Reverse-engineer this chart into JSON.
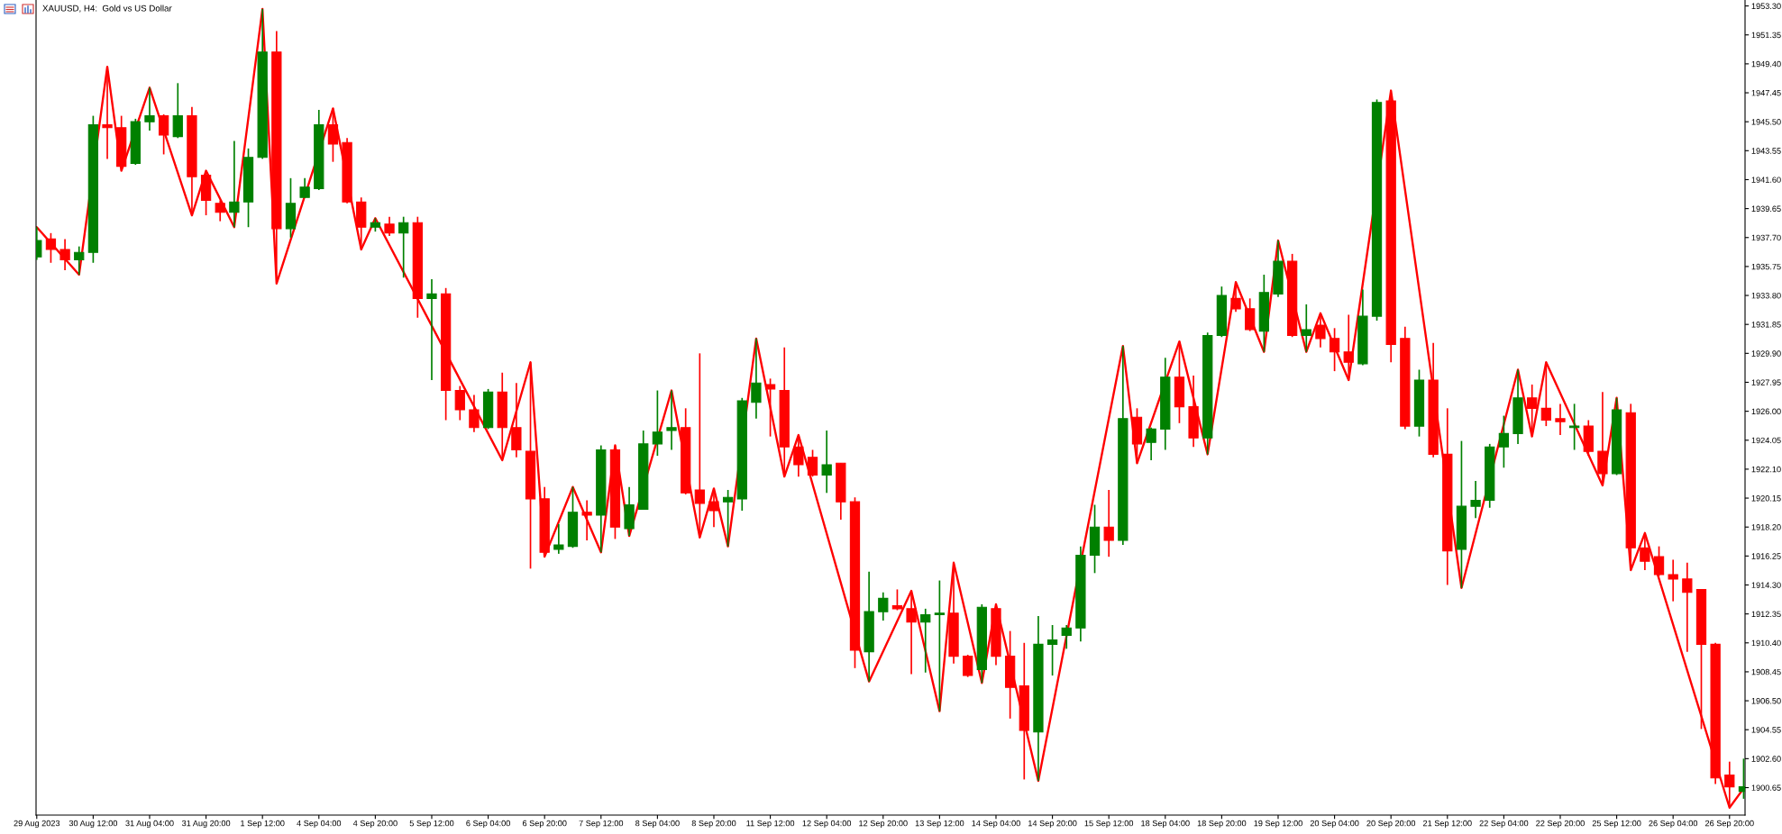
{
  "chart_data": {
    "type": "candlestick",
    "title": "XAUUSD, H4:  Gold vs US Dollar",
    "categories": [
      "29 Aug 2023",
      null,
      null,
      null,
      "30 Aug 12:00",
      null,
      null,
      null,
      "31 Aug 04:00",
      null,
      null,
      null,
      "31 Aug 20:00",
      null,
      null,
      null,
      "1 Sep 12:00",
      null,
      null,
      null,
      "4 Sep 04:00",
      null,
      null,
      null,
      "4 Sep 20:00",
      null,
      null,
      null,
      "5 Sep 12:00",
      null,
      null,
      null,
      "6 Sep 04:00",
      null,
      null,
      null,
      "6 Sep 20:00",
      null,
      null,
      null,
      "7 Sep 12:00",
      null,
      null,
      null,
      "8 Sep 04:00",
      null,
      null,
      null,
      "8 Sep 20:00",
      null,
      null,
      null,
      "11 Sep 12:00",
      null,
      null,
      null,
      "12 Sep 04:00",
      null,
      null,
      null,
      "12 Sep 20:00",
      null,
      null,
      null,
      "13 Sep 12:00",
      null,
      null,
      null,
      "14 Sep 04:00",
      null,
      null,
      null,
      "14 Sep 20:00",
      null,
      null,
      null,
      "15 Sep 12:00",
      null,
      null,
      null,
      "18 Sep 04:00",
      null,
      null,
      null,
      "18 Sep 20:00",
      null,
      null,
      null,
      "19 Sep 12:00",
      null,
      null,
      null,
      "20 Sep 04:00",
      null,
      null,
      null,
      "20 Sep 20:00",
      null,
      null,
      null,
      "21 Sep 12:00",
      null,
      null,
      null,
      "22 Sep 04:00",
      null,
      null,
      null,
      "22 Sep 20:00",
      null,
      null,
      null,
      "25 Sep 12:00",
      null,
      null,
      null,
      "26 Sep 04:00",
      null,
      null,
      null,
      "26 Sep 20:00",
      null
    ],
    "ohlc": [
      [
        1936.4,
        1938.4,
        1936.2,
        1937.5
      ],
      [
        1937.6,
        1938.0,
        1936.0,
        1936.9
      ],
      [
        1936.9,
        1937.6,
        1935.5,
        1936.2
      ],
      [
        1936.2,
        1937.1,
        1935.2,
        1936.7
      ],
      [
        1936.7,
        1945.9,
        1936.0,
        1945.3
      ],
      [
        1945.3,
        1949.2,
        1943.0,
        1945.1
      ],
      [
        1945.1,
        1945.9,
        1942.2,
        1942.5
      ],
      [
        1942.7,
        1945.7,
        1942.6,
        1945.5
      ],
      [
        1945.5,
        1947.8,
        1944.9,
        1945.9
      ],
      [
        1945.9,
        1946.0,
        1943.3,
        1944.6
      ],
      [
        1944.5,
        1948.1,
        1944.4,
        1945.9
      ],
      [
        1945.9,
        1946.5,
        1939.2,
        1941.8
      ],
      [
        1941.9,
        1942.2,
        1939.2,
        1940.2
      ],
      [
        1940.0,
        1940.2,
        1938.8,
        1939.4
      ],
      [
        1939.4,
        1944.2,
        1938.4,
        1940.1
      ],
      [
        1940.1,
        1943.7,
        1938.4,
        1943.1
      ],
      [
        1943.1,
        1953.1,
        1943.0,
        1950.2
      ],
      [
        1950.2,
        1951.6,
        1934.6,
        1938.3
      ],
      [
        1938.3,
        1941.7,
        1937.7,
        1940.0
      ],
      [
        1940.4,
        1941.7,
        1940.4,
        1941.1
      ],
      [
        1941.0,
        1946.3,
        1940.9,
        1945.3
      ],
      [
        1945.3,
        1946.4,
        1942.8,
        1944.0
      ],
      [
        1944.1,
        1944.4,
        1940.0,
        1940.1
      ],
      [
        1940.1,
        1940.4,
        1936.9,
        1938.4
      ],
      [
        1938.4,
        1939.0,
        1938.1,
        1938.7
      ],
      [
        1938.6,
        1939.1,
        1937.8,
        1938.0
      ],
      [
        1938.0,
        1939.1,
        1935.0,
        1938.7
      ],
      [
        1938.7,
        1939.1,
        1932.3,
        1933.6
      ],
      [
        1933.6,
        1934.9,
        1928.1,
        1933.9
      ],
      [
        1933.9,
        1934.3,
        1925.4,
        1927.4
      ],
      [
        1927.4,
        1927.7,
        1925.4,
        1926.1
      ],
      [
        1926.1,
        1927.1,
        1924.6,
        1924.9
      ],
      [
        1924.9,
        1927.5,
        1924.8,
        1927.3
      ],
      [
        1927.3,
        1928.6,
        1922.7,
        1924.9
      ],
      [
        1924.9,
        1927.9,
        1922.9,
        1923.4
      ],
      [
        1923.3,
        1929.3,
        1915.4,
        1920.1
      ],
      [
        1920.1,
        1920.9,
        1916.2,
        1916.5
      ],
      [
        1916.7,
        1918.4,
        1916.4,
        1917.0
      ],
      [
        1916.9,
        1920.9,
        1916.8,
        1919.2
      ],
      [
        1919.2,
        1920.0,
        1917.3,
        1919.0
      ],
      [
        1919.0,
        1923.7,
        1916.5,
        1923.4
      ],
      [
        1923.4,
        1923.7,
        1917.4,
        1918.2
      ],
      [
        1918.1,
        1920.9,
        1917.6,
        1919.7
      ],
      [
        1919.4,
        1924.7,
        1919.4,
        1923.8
      ],
      [
        1923.8,
        1927.4,
        1923.0,
        1924.6
      ],
      [
        1924.7,
        1927.4,
        1923.4,
        1924.9
      ],
      [
        1924.9,
        1926.2,
        1920.4,
        1920.5
      ],
      [
        1920.7,
        1929.9,
        1917.5,
        1919.8
      ],
      [
        1919.9,
        1920.8,
        1918.2,
        1919.3
      ],
      [
        1919.9,
        1920.7,
        1916.9,
        1920.2
      ],
      [
        1920.1,
        1926.9,
        1919.3,
        1926.7
      ],
      [
        1926.6,
        1930.9,
        1925.5,
        1927.9
      ],
      [
        1927.8,
        1928.2,
        1924.3,
        1927.5
      ],
      [
        1927.4,
        1930.3,
        1921.6,
        1923.6
      ],
      [
        1923.6,
        1924.4,
        1921.6,
        1922.4
      ],
      [
        1922.9,
        1923.4,
        1921.6,
        1921.7
      ],
      [
        1921.7,
        1924.7,
        1920.5,
        1922.4
      ],
      [
        1922.5,
        1922.5,
        1918.7,
        1919.9
      ],
      [
        1919.9,
        1920.2,
        1908.7,
        1909.9
      ],
      [
        1909.8,
        1915.2,
        1907.8,
        1912.5
      ],
      [
        1912.5,
        1913.8,
        1911.9,
        1913.4
      ],
      [
        1912.9,
        1914.0,
        1912.6,
        1912.7
      ],
      [
        1912.7,
        1913.9,
        1908.3,
        1911.8
      ],
      [
        1911.8,
        1912.7,
        1908.4,
        1912.3
      ],
      [
        1912.3,
        1914.6,
        1905.8,
        1912.4
      ],
      [
        1912.4,
        1915.8,
        1909.0,
        1909.5
      ],
      [
        1909.5,
        1909.6,
        1908.1,
        1908.2
      ],
      [
        1908.6,
        1913.0,
        1907.7,
        1912.8
      ],
      [
        1912.7,
        1913.0,
        1908.9,
        1909.5
      ],
      [
        1909.5,
        1911.2,
        1905.3,
        1907.4
      ],
      [
        1907.5,
        1910.4,
        1901.2,
        1904.5
      ],
      [
        1904.4,
        1912.2,
        1901.1,
        1910.3
      ],
      [
        1910.3,
        1911.6,
        1908.2,
        1910.6
      ],
      [
        1910.9,
        1911.6,
        1910.0,
        1911.4
      ],
      [
        1911.4,
        1916.9,
        1910.5,
        1916.3
      ],
      [
        1916.3,
        1919.7,
        1915.1,
        1918.2
      ],
      [
        1918.2,
        1920.7,
        1916.2,
        1917.3
      ],
      [
        1917.3,
        1930.4,
        1917.0,
        1925.5
      ],
      [
        1925.6,
        1926.2,
        1922.5,
        1923.8
      ],
      [
        1923.9,
        1924.9,
        1922.7,
        1924.8
      ],
      [
        1924.8,
        1929.6,
        1923.4,
        1928.3
      ],
      [
        1928.3,
        1930.7,
        1925.2,
        1926.3
      ],
      [
        1926.3,
        1928.4,
        1923.6,
        1924.2
      ],
      [
        1924.2,
        1931.3,
        1923.1,
        1931.1
      ],
      [
        1931.1,
        1934.4,
        1931.0,
        1933.8
      ],
      [
        1933.6,
        1934.7,
        1932.7,
        1932.9
      ],
      [
        1932.9,
        1933.6,
        1931.4,
        1931.5
      ],
      [
        1931.4,
        1935.2,
        1930.0,
        1934.0
      ],
      [
        1933.9,
        1937.5,
        1933.7,
        1936.1
      ],
      [
        1936.1,
        1936.6,
        1931.0,
        1931.1
      ],
      [
        1931.1,
        1933.2,
        1930.0,
        1931.5
      ],
      [
        1931.8,
        1932.6,
        1930.3,
        1930.9
      ],
      [
        1930.9,
        1931.6,
        1928.7,
        1930.0
      ],
      [
        1930.0,
        1932.5,
        1928.1,
        1929.3
      ],
      [
        1929.2,
        1934.2,
        1929.1,
        1932.4
      ],
      [
        1932.4,
        1947.0,
        1932.1,
        1946.8
      ],
      [
        1946.9,
        1947.6,
        1929.3,
        1930.5
      ],
      [
        1930.9,
        1931.7,
        1924.8,
        1925.0
      ],
      [
        1925.0,
        1928.8,
        1924.3,
        1928.1
      ],
      [
        1928.1,
        1930.6,
        1922.9,
        1923.1
      ],
      [
        1923.1,
        1926.2,
        1914.3,
        1916.6
      ],
      [
        1916.7,
        1924.0,
        1914.1,
        1919.6
      ],
      [
        1919.6,
        1921.3,
        1918.8,
        1920.0
      ],
      [
        1920.0,
        1923.8,
        1919.5,
        1923.6
      ],
      [
        1923.6,
        1925.7,
        1922.2,
        1924.5
      ],
      [
        1924.5,
        1928.8,
        1923.8,
        1926.9
      ],
      [
        1926.9,
        1927.8,
        1924.3,
        1926.2
      ],
      [
        1926.2,
        1929.3,
        1925.0,
        1925.4
      ],
      [
        1925.5,
        1926.5,
        1924.4,
        1925.3
      ],
      [
        1924.9,
        1926.5,
        1923.4,
        1925.0
      ],
      [
        1925.0,
        1925.4,
        1923.0,
        1923.3
      ],
      [
        1923.3,
        1927.3,
        1921.0,
        1921.8
      ],
      [
        1921.8,
        1926.9,
        1921.7,
        1926.1
      ],
      [
        1925.9,
        1926.5,
        1915.3,
        1916.8
      ],
      [
        1916.8,
        1917.8,
        1915.3,
        1915.9
      ],
      [
        1916.2,
        1916.9,
        1914.9,
        1915.0
      ],
      [
        1915.0,
        1916.0,
        1913.2,
        1914.7
      ],
      [
        1914.7,
        1915.8,
        1909.8,
        1913.8
      ],
      [
        1914.0,
        1914.0,
        1904.6,
        1910.3
      ],
      [
        1910.3,
        1910.4,
        1900.9,
        1901.3
      ],
      [
        1901.5,
        1902.4,
        1899.3,
        1900.7
      ],
      [
        1900.4,
        1902.6,
        1899.9,
        1900.7
      ]
    ],
    "colors": [
      "#008000",
      "#ff0000",
      "#ff0000",
      "#008000",
      "#008000",
      "#ff0000",
      "#ff0000",
      "#008000",
      "#008000",
      "#ff0000",
      "#008000",
      "#ff0000",
      "#ff0000",
      "#ff0000",
      "#008000",
      "#008000",
      "#008000",
      "#ff0000",
      "#008000",
      "#008000",
      "#008000",
      "#ff0000",
      "#ff0000",
      "#ff0000",
      "#008000",
      "#ff0000",
      "#008000",
      "#ff0000",
      "#008000",
      "#ff0000",
      "#ff0000",
      "#ff0000",
      "#008000",
      "#ff0000",
      "#ff0000",
      "#ff0000",
      "#ff0000",
      "#008000",
      "#008000",
      "#ff0000",
      "#008000",
      "#ff0000",
      "#008000",
      "#008000",
      "#008000",
      "#008000",
      "#ff0000",
      "#ff0000",
      "#ff0000",
      "#008000",
      "#008000",
      "#008000",
      "#ff0000",
      "#ff0000",
      "#ff0000",
      "#ff0000",
      "#008000",
      "#ff0000",
      "#ff0000",
      "#008000",
      "#008000",
      "#ff0000",
      "#ff0000",
      "#008000",
      "#008000",
      "#ff0000",
      "#ff0000",
      "#008000",
      "#ff0000",
      "#ff0000",
      "#ff0000",
      "#008000",
      "#008000",
      "#008000",
      "#008000",
      "#008000",
      "#ff0000",
      "#008000",
      "#ff0000",
      "#008000",
      "#008000",
      "#ff0000",
      "#ff0000",
      "#008000",
      "#008000",
      "#ff0000",
      "#ff0000",
      "#008000",
      "#008000",
      "#ff0000",
      "#008000",
      "#ff0000",
      "#ff0000",
      "#ff0000",
      "#008000",
      "#008000",
      "#ff0000",
      "#ff0000",
      "#008000",
      "#ff0000",
      "#ff0000",
      "#008000",
      "#008000",
      "#008000",
      "#008000",
      "#008000",
      "#ff0000",
      "#ff0000",
      "#ff0000",
      "#008000",
      "#ff0000",
      "#ff0000",
      "#008000",
      "#ff0000",
      "#ff0000",
      "#ff0000",
      "#ff0000",
      "#ff0000",
      "#ff0000",
      "#ff0000",
      "#ff0000",
      "#008000"
    ],
    "series": [
      {
        "type": "line",
        "color": "#ff0000",
        "values": [
          1938.4,
          null,
          null,
          1935.2,
          null,
          1949.2,
          1942.2,
          null,
          1947.8,
          null,
          null,
          1939.2,
          1942.2,
          null,
          1938.4,
          null,
          1953.1,
          1934.6,
          null,
          null,
          null,
          1946.4,
          null,
          1936.9,
          1939.0,
          null,
          null,
          null,
          null,
          null,
          null,
          null,
          null,
          1922.7,
          null,
          1929.3,
          1916.2,
          null,
          1920.9,
          null,
          1916.5,
          1923.7,
          1917.6,
          null,
          null,
          1927.4,
          null,
          1917.5,
          1920.8,
          1916.9,
          null,
          1930.9,
          null,
          1921.6,
          1924.4,
          null,
          null,
          null,
          null,
          1907.8,
          null,
          null,
          1913.9,
          null,
          1905.8,
          1915.8,
          null,
          1907.7,
          1913.0,
          null,
          null,
          1901.1,
          null,
          null,
          null,
          null,
          null,
          1930.4,
          1922.5,
          null,
          null,
          1930.7,
          null,
          1923.1,
          null,
          1934.7,
          null,
          1930.0,
          1937.5,
          null,
          1930.0,
          1932.6,
          null,
          1928.1,
          null,
          null,
          1947.6,
          null,
          null,
          null,
          null,
          1914.1,
          null,
          null,
          null,
          1928.8,
          1924.3,
          1929.3,
          null,
          null,
          null,
          1921.0,
          1926.9,
          1915.3,
          1917.8,
          null,
          null,
          null,
          null,
          null,
          1899.3,
          1900.6
        ]
      }
    ],
    "ylim": [
      1898.8,
      1953.7
    ],
    "yticks": [
      {
        "value": 1900.65,
        "label": "1900.65"
      },
      {
        "value": 1902.6,
        "label": "1902.60"
      },
      {
        "value": 1904.55,
        "label": "1904.55"
      },
      {
        "value": 1906.5,
        "label": "1906.50"
      },
      {
        "value": 1908.45,
        "label": "1908.45"
      },
      {
        "value": 1910.4,
        "label": "1910.40"
      },
      {
        "value": 1912.35,
        "label": "1912.35"
      },
      {
        "value": 1914.3,
        "label": "1914.30"
      },
      {
        "value": 1916.25,
        "label": "1916.25"
      },
      {
        "value": 1918.2,
        "label": "1918.20"
      },
      {
        "value": 1920.15,
        "label": "1920.15"
      },
      {
        "value": 1922.1,
        "label": "1922.10"
      },
      {
        "value": 1924.05,
        "label": "1924.05"
      },
      {
        "value": 1926.0,
        "label": "1926.00"
      },
      {
        "value": 1927.95,
        "label": "1927.95"
      },
      {
        "value": 1929.9,
        "label": "1929.90"
      },
      {
        "value": 1931.85,
        "label": "1931.85"
      },
      {
        "value": 1933.8,
        "label": "1933.80"
      },
      {
        "value": 1935.75,
        "label": "1935.75"
      },
      {
        "value": 1937.7,
        "label": "1937.70"
      },
      {
        "value": 1939.65,
        "label": "1939.65"
      },
      {
        "value": 1941.6,
        "label": "1941.60"
      },
      {
        "value": 1943.55,
        "label": "1943.55"
      },
      {
        "value": 1945.5,
        "label": "1945.50"
      },
      {
        "value": 1947.45,
        "label": "1947.45"
      },
      {
        "value": 1949.4,
        "label": "1949.40"
      },
      {
        "value": 1951.35,
        "label": "1951.35"
      },
      {
        "value": 1953.3,
        "label": "1953.30"
      }
    ]
  }
}
